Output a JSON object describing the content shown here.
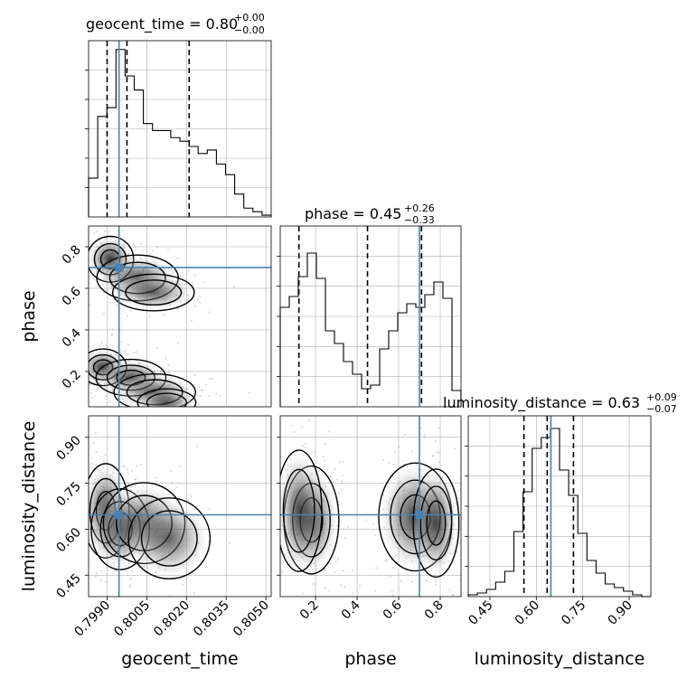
{
  "colors": {
    "truth": "#4682b4",
    "hist": "#000000",
    "grid": "#b0b0b0",
    "scatter": "#9a9a9a"
  },
  "chart_data": {
    "type": "corner",
    "params": [
      "geocent_time",
      "phase",
      "luminosity_distance"
    ],
    "truths": {
      "geocent_time": 0.79945,
      "phase": 0.7,
      "luminosity_distance": 0.647
    },
    "titles": [
      {
        "param": "geocent_time",
        "text": "geocent_time = 0.80",
        "sup": "+0.00",
        "sub": "−0.00"
      },
      {
        "param": "phase",
        "text": "phase = 0.45",
        "sup": "+0.26",
        "sub": "−0.33"
      },
      {
        "param": "luminosity_distance",
        "text": "luminosity_distance = 0.63",
        "sup": "+0.09",
        "sub": "−0.07"
      }
    ],
    "axis_labels": {
      "geocent_time": "geocent_time",
      "phase": "phase",
      "luminosity_distance": "luminosity_distance"
    },
    "ranges": {
      "geocent_time": [
        0.7983,
        0.8052
      ],
      "phase": [
        0.03,
        0.9
      ],
      "luminosity_distance": [
        0.38,
        0.97
      ]
    },
    "ticks": {
      "geocent_time": [
        "0.7990",
        "0.8005",
        "0.8020",
        "0.8035",
        "0.8050"
      ],
      "phase": [
        "0.2",
        "0.4",
        "0.6",
        "0.8"
      ],
      "luminosity_distance": [
        "0.45",
        "0.60",
        "0.75",
        "0.90"
      ]
    },
    "quantiles": {
      "geocent_time": [
        0.799,
        0.79975,
        0.8021
      ],
      "phase": [
        0.12,
        0.45,
        0.71
      ],
      "luminosity_distance": [
        0.56,
        0.635,
        0.72
      ]
    },
    "histograms": {
      "geocent_time": [
        0.22,
        0.57,
        0.62,
        0.95,
        0.8,
        0.72,
        0.53,
        0.49,
        0.49,
        0.45,
        0.43,
        0.4,
        0.36,
        0.38,
        0.3,
        0.24,
        0.13,
        0.05,
        0.03,
        0.01
      ],
      "phase": [
        0.55,
        0.61,
        0.72,
        0.85,
        0.71,
        0.42,
        0.35,
        0.25,
        0.18,
        0.1,
        0.12,
        0.32,
        0.42,
        0.52,
        0.57,
        0.55,
        0.62,
        0.69,
        0.6,
        0.09
      ],
      "luminosity_distance": [
        0.01,
        0.02,
        0.04,
        0.08,
        0.14,
        0.36,
        0.58,
        0.82,
        0.88,
        0.93,
        0.7,
        0.56,
        0.35,
        0.2,
        0.13,
        0.07,
        0.05,
        0.03,
        0.01,
        0.0
      ]
    }
  }
}
